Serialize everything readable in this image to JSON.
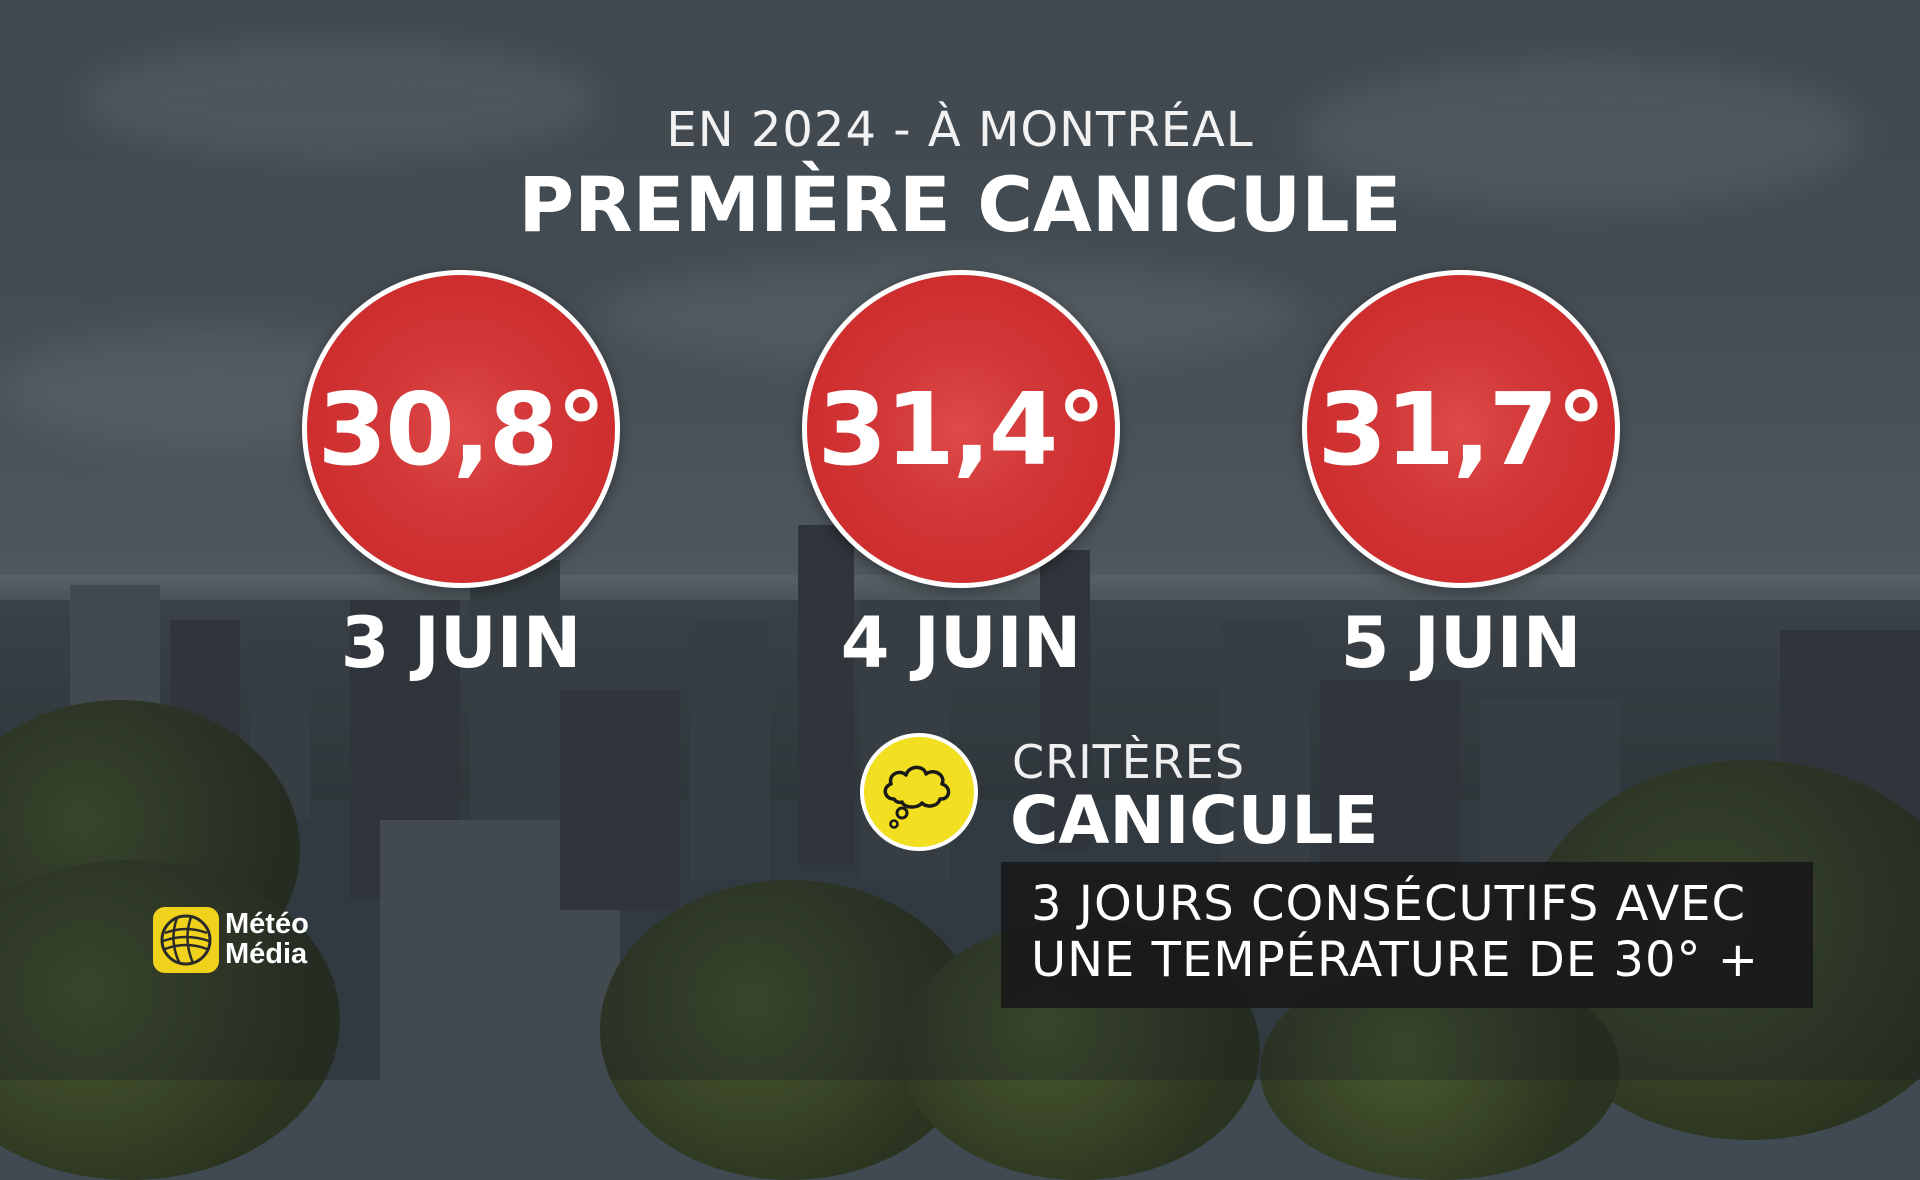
{
  "header": {
    "subtitle": "EN 2024 - À MONTRÉAL",
    "title": "PREMIÈRE CANICULE"
  },
  "days": [
    {
      "temperature": "30,8°",
      "date": "3 JUIN"
    },
    {
      "temperature": "31,4°",
      "date": "4 JUIN"
    },
    {
      "temperature": "31,7°",
      "date": "5 JUIN"
    }
  ],
  "criteria": {
    "icon": "thought-cloud-icon",
    "label_small": "CRITÈRES",
    "label_big": "CANICULE",
    "line1": "3 JOURS CONSÉCUTIFS AVEC",
    "line2": "UNE TEMPÉRATURE DE 30° +"
  },
  "logo": {
    "line1": "Météo",
    "line2": "Média"
  },
  "colors": {
    "circle_red": "#d23838",
    "icon_yellow": "#f3df21",
    "logo_yellow": "#f0d21c",
    "text": "#ffffff"
  }
}
